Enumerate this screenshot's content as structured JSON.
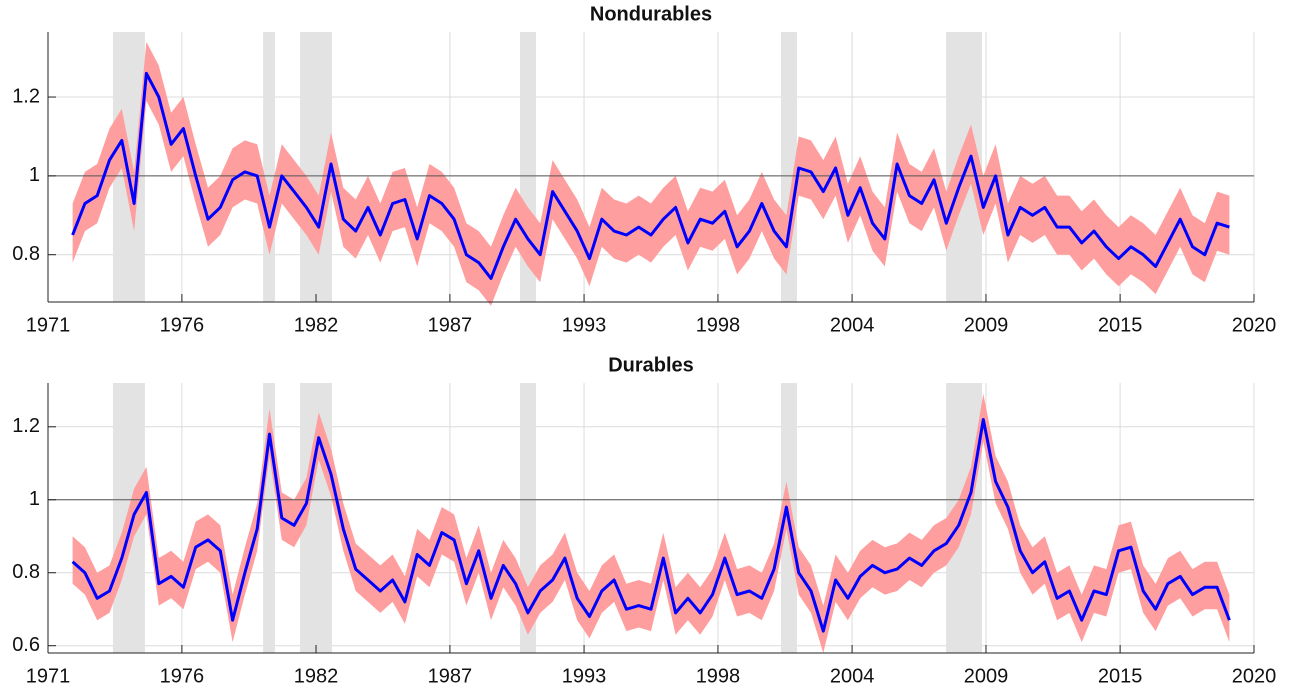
{
  "chart_data": [
    {
      "type": "line",
      "title": "Nondurables",
      "x": [
        1972,
        1972.5,
        1973,
        1973.5,
        1974,
        1974.5,
        1975,
        1975.5,
        1976,
        1976.5,
        1977,
        1977.5,
        1978,
        1978.5,
        1979,
        1979.5,
        1980,
        1980.5,
        1981,
        1981.5,
        1982,
        1982.5,
        1983,
        1983.5,
        1984,
        1984.5,
        1985,
        1985.5,
        1986,
        1986.5,
        1987,
        1987.5,
        1988,
        1988.5,
        1989,
        1989.5,
        1990,
        1990.5,
        1991,
        1991.5,
        1992,
        1992.5,
        1993,
        1993.5,
        1994,
        1994.5,
        1995,
        1995.5,
        1996,
        1996.5,
        1997,
        1997.5,
        1998,
        1998.5,
        1999,
        1999.5,
        2000,
        2000.5,
        2001,
        2001.5,
        2002,
        2002.5,
        2003,
        2003.5,
        2004,
        2004.5,
        2005,
        2005.5,
        2006,
        2006.5,
        2007,
        2007.5,
        2008,
        2008.5,
        2009,
        2009.5,
        2010,
        2010.5,
        2011,
        2011.5,
        2012,
        2012.5,
        2013,
        2013.5,
        2014,
        2014.5,
        2015,
        2015.5,
        2016,
        2016.5,
        2017,
        2017.5,
        2018,
        2018.5,
        2019
      ],
      "values": [
        0.85,
        0.93,
        0.95,
        1.04,
        1.09,
        0.93,
        1.26,
        1.2,
        1.08,
        1.12,
        1.0,
        0.89,
        0.92,
        0.99,
        1.01,
        1.0,
        0.87,
        1.0,
        0.96,
        0.92,
        0.87,
        1.03,
        0.89,
        0.86,
        0.92,
        0.85,
        0.93,
        0.94,
        0.84,
        0.95,
        0.93,
        0.89,
        0.8,
        0.78,
        0.74,
        0.82,
        0.89,
        0.84,
        0.8,
        0.96,
        0.91,
        0.86,
        0.79,
        0.89,
        0.86,
        0.85,
        0.87,
        0.85,
        0.89,
        0.92,
        0.83,
        0.89,
        0.88,
        0.91,
        0.82,
        0.86,
        0.93,
        0.86,
        0.82,
        1.02,
        1.01,
        0.96,
        1.02,
        0.9,
        0.97,
        0.88,
        0.84,
        1.03,
        0.95,
        0.93,
        0.99,
        0.88,
        0.97,
        1.05,
        0.92,
        1.0,
        0.85,
        0.92,
        0.9,
        0.92,
        0.87,
        0.87,
        0.83,
        0.86,
        0.82,
        0.79,
        0.82,
        0.8,
        0.77,
        0.83,
        0.89,
        0.82,
        0.8,
        0.88,
        0.87
      ],
      "lower": [
        0.78,
        0.86,
        0.88,
        0.97,
        1.02,
        0.86,
        1.19,
        1.13,
        1.01,
        1.05,
        0.93,
        0.82,
        0.85,
        0.92,
        0.94,
        0.93,
        0.8,
        0.93,
        0.89,
        0.85,
        0.8,
        0.96,
        0.82,
        0.79,
        0.85,
        0.78,
        0.86,
        0.87,
        0.77,
        0.88,
        0.86,
        0.82,
        0.73,
        0.71,
        0.67,
        0.75,
        0.82,
        0.77,
        0.73,
        0.89,
        0.84,
        0.79,
        0.72,
        0.82,
        0.79,
        0.78,
        0.8,
        0.78,
        0.82,
        0.85,
        0.76,
        0.82,
        0.81,
        0.84,
        0.75,
        0.79,
        0.86,
        0.79,
        0.75,
        0.95,
        0.94,
        0.89,
        0.95,
        0.83,
        0.9,
        0.81,
        0.77,
        0.96,
        0.88,
        0.86,
        0.92,
        0.81,
        0.9,
        0.98,
        0.85,
        0.93,
        0.78,
        0.85,
        0.83,
        0.85,
        0.8,
        0.8,
        0.76,
        0.79,
        0.75,
        0.72,
        0.75,
        0.73,
        0.7,
        0.76,
        0.82,
        0.75,
        0.73,
        0.81,
        0.8
      ],
      "upper": [
        0.93,
        1.01,
        1.03,
        1.12,
        1.17,
        1.01,
        1.34,
        1.28,
        1.16,
        1.2,
        1.08,
        0.97,
        1.0,
        1.07,
        1.09,
        1.08,
        0.95,
        1.08,
        1.04,
        1.0,
        0.95,
        1.11,
        0.97,
        0.94,
        1.0,
        0.93,
        1.01,
        1.02,
        0.92,
        1.03,
        1.01,
        0.97,
        0.88,
        0.86,
        0.82,
        0.9,
        0.97,
        0.92,
        0.88,
        1.04,
        0.99,
        0.94,
        0.87,
        0.97,
        0.94,
        0.93,
        0.95,
        0.93,
        0.97,
        1.0,
        0.91,
        0.97,
        0.96,
        0.99,
        0.9,
        0.94,
        1.01,
        0.94,
        0.9,
        1.1,
        1.09,
        1.04,
        1.1,
        0.98,
        1.05,
        0.96,
        0.92,
        1.11,
        1.03,
        1.01,
        1.07,
        0.96,
        1.05,
        1.13,
        1.0,
        1.08,
        0.93,
        1.0,
        0.98,
        1.0,
        0.95,
        0.95,
        0.91,
        0.94,
        0.9,
        0.87,
        0.9,
        0.88,
        0.85,
        0.91,
        0.97,
        0.9,
        0.88,
        0.96,
        0.95
      ],
      "line_color": "#0000ff",
      "band_color": "#ff9e9e",
      "shade_color": "#e3e3e3",
      "shaded_periods": [
        [
          1973.64,
          1974.94
        ],
        [
          1979.74,
          1980.22
        ],
        [
          1981.24,
          1982.54
        ],
        [
          1990.18,
          1990.83
        ],
        [
          2000.78,
          2001.43
        ],
        [
          2007.49,
          2008.95
        ]
      ],
      "hline": 1,
      "xlim": [
        1971,
        2020
      ],
      "xticks": [
        {
          "value": 1971,
          "label": "1971"
        },
        {
          "value": 1976.44,
          "label": "1976"
        },
        {
          "value": 1981.89,
          "label": "1982"
        },
        {
          "value": 1987.33,
          "label": "1987"
        },
        {
          "value": 1992.78,
          "label": "1993"
        },
        {
          "value": 1998.22,
          "label": "1998"
        },
        {
          "value": 2003.67,
          "label": "2004"
        },
        {
          "value": 2009.11,
          "label": "2009"
        },
        {
          "value": 2014.56,
          "label": "2015"
        },
        {
          "value": 2020,
          "label": "2020"
        }
      ],
      "ylim": [
        0.68,
        1.365
      ],
      "yticks": [
        0.8,
        1,
        1.2
      ],
      "grid": true
    },
    {
      "type": "line",
      "title": "Durables",
      "x": [
        1972,
        1972.5,
        1973,
        1973.5,
        1974,
        1974.5,
        1975,
        1975.5,
        1976,
        1976.5,
        1977,
        1977.5,
        1978,
        1978.5,
        1979,
        1979.5,
        1980,
        1980.5,
        1981,
        1981.5,
        1982,
        1982.5,
        1983,
        1983.5,
        1984,
        1984.5,
        1985,
        1985.5,
        1986,
        1986.5,
        1987,
        1987.5,
        1988,
        1988.5,
        1989,
        1989.5,
        1990,
        1990.5,
        1991,
        1991.5,
        1992,
        1992.5,
        1993,
        1993.5,
        1994,
        1994.5,
        1995,
        1995.5,
        1996,
        1996.5,
        1997,
        1997.5,
        1998,
        1998.5,
        1999,
        1999.5,
        2000,
        2000.5,
        2001,
        2001.5,
        2002,
        2002.5,
        2003,
        2003.5,
        2004,
        2004.5,
        2005,
        2005.5,
        2006,
        2006.5,
        2007,
        2007.5,
        2008,
        2008.5,
        2009,
        2009.5,
        2010,
        2010.5,
        2011,
        2011.5,
        2012,
        2012.5,
        2013,
        2013.5,
        2014,
        2014.5,
        2015,
        2015.5,
        2016,
        2016.5,
        2017,
        2017.5,
        2018,
        2018.5,
        2019
      ],
      "values": [
        0.83,
        0.8,
        0.73,
        0.75,
        0.84,
        0.96,
        1.02,
        0.77,
        0.79,
        0.76,
        0.87,
        0.89,
        0.86,
        0.67,
        0.8,
        0.92,
        1.18,
        0.95,
        0.93,
        0.99,
        1.17,
        1.07,
        0.92,
        0.81,
        0.78,
        0.75,
        0.78,
        0.72,
        0.85,
        0.82,
        0.91,
        0.89,
        0.77,
        0.86,
        0.73,
        0.82,
        0.77,
        0.69,
        0.75,
        0.78,
        0.84,
        0.73,
        0.68,
        0.75,
        0.78,
        0.7,
        0.71,
        0.7,
        0.84,
        0.69,
        0.73,
        0.69,
        0.74,
        0.84,
        0.74,
        0.75,
        0.73,
        0.81,
        0.98,
        0.8,
        0.75,
        0.64,
        0.78,
        0.73,
        0.79,
        0.82,
        0.8,
        0.81,
        0.84,
        0.82,
        0.86,
        0.88,
        0.93,
        1.02,
        1.22,
        1.05,
        0.98,
        0.86,
        0.8,
        0.83,
        0.73,
        0.75,
        0.67,
        0.75,
        0.74,
        0.86,
        0.87,
        0.75,
        0.7,
        0.77,
        0.79,
        0.74,
        0.76,
        0.76,
        0.67
      ],
      "lower": [
        0.77,
        0.74,
        0.67,
        0.69,
        0.78,
        0.9,
        0.96,
        0.71,
        0.73,
        0.7,
        0.81,
        0.83,
        0.8,
        0.61,
        0.74,
        0.86,
        1.12,
        0.89,
        0.87,
        0.93,
        1.11,
        1.01,
        0.86,
        0.75,
        0.72,
        0.69,
        0.72,
        0.66,
        0.79,
        0.76,
        0.85,
        0.83,
        0.71,
        0.8,
        0.67,
        0.76,
        0.71,
        0.63,
        0.69,
        0.72,
        0.78,
        0.67,
        0.62,
        0.69,
        0.72,
        0.64,
        0.65,
        0.64,
        0.78,
        0.63,
        0.67,
        0.63,
        0.68,
        0.78,
        0.68,
        0.69,
        0.67,
        0.75,
        0.92,
        0.74,
        0.69,
        0.58,
        0.72,
        0.67,
        0.73,
        0.76,
        0.74,
        0.75,
        0.78,
        0.76,
        0.8,
        0.82,
        0.87,
        0.96,
        1.16,
        0.99,
        0.92,
        0.8,
        0.74,
        0.77,
        0.67,
        0.69,
        0.61,
        0.69,
        0.68,
        0.8,
        0.81,
        0.69,
        0.64,
        0.71,
        0.73,
        0.68,
        0.7,
        0.7,
        0.61
      ],
      "upper": [
        0.9,
        0.87,
        0.8,
        0.82,
        0.91,
        1.03,
        1.09,
        0.84,
        0.86,
        0.83,
        0.94,
        0.96,
        0.93,
        0.74,
        0.87,
        0.99,
        1.25,
        1.02,
        1.0,
        1.06,
        1.24,
        1.14,
        0.99,
        0.88,
        0.85,
        0.82,
        0.85,
        0.79,
        0.92,
        0.89,
        0.98,
        0.96,
        0.84,
        0.93,
        0.8,
        0.89,
        0.84,
        0.76,
        0.82,
        0.85,
        0.91,
        0.8,
        0.75,
        0.82,
        0.85,
        0.77,
        0.78,
        0.77,
        0.91,
        0.76,
        0.8,
        0.76,
        0.81,
        0.91,
        0.81,
        0.82,
        0.8,
        0.88,
        1.05,
        0.87,
        0.82,
        0.71,
        0.85,
        0.8,
        0.86,
        0.89,
        0.87,
        0.88,
        0.91,
        0.89,
        0.93,
        0.95,
        1.0,
        1.09,
        1.29,
        1.12,
        1.05,
        0.93,
        0.87,
        0.9,
        0.8,
        0.82,
        0.74,
        0.82,
        0.81,
        0.93,
        0.94,
        0.82,
        0.77,
        0.84,
        0.86,
        0.81,
        0.83,
        0.83,
        0.74
      ],
      "line_color": "#0000ff",
      "band_color": "#ff9e9e",
      "shade_color": "#e3e3e3",
      "shaded_periods": [
        [
          1973.64,
          1974.94
        ],
        [
          1979.74,
          1980.22
        ],
        [
          1981.24,
          1982.54
        ],
        [
          1990.18,
          1990.83
        ],
        [
          2000.78,
          2001.43
        ],
        [
          2007.49,
          2008.95
        ]
      ],
      "hline": 1,
      "xlim": [
        1971,
        2020
      ],
      "xticks": [
        {
          "value": 1971,
          "label": "1971"
        },
        {
          "value": 1976.44,
          "label": "1976"
        },
        {
          "value": 1981.89,
          "label": "1982"
        },
        {
          "value": 1987.33,
          "label": "1987"
        },
        {
          "value": 1992.78,
          "label": "1993"
        },
        {
          "value": 1998.22,
          "label": "1998"
        },
        {
          "value": 2003.67,
          "label": "2004"
        },
        {
          "value": 2009.11,
          "label": "2009"
        },
        {
          "value": 2014.56,
          "label": "2015"
        },
        {
          "value": 2020,
          "label": "2020"
        }
      ],
      "ylim": [
        0.58,
        1.32
      ],
      "yticks": [
        0.6,
        0.8,
        1,
        1.2
      ],
      "grid": true
    }
  ]
}
